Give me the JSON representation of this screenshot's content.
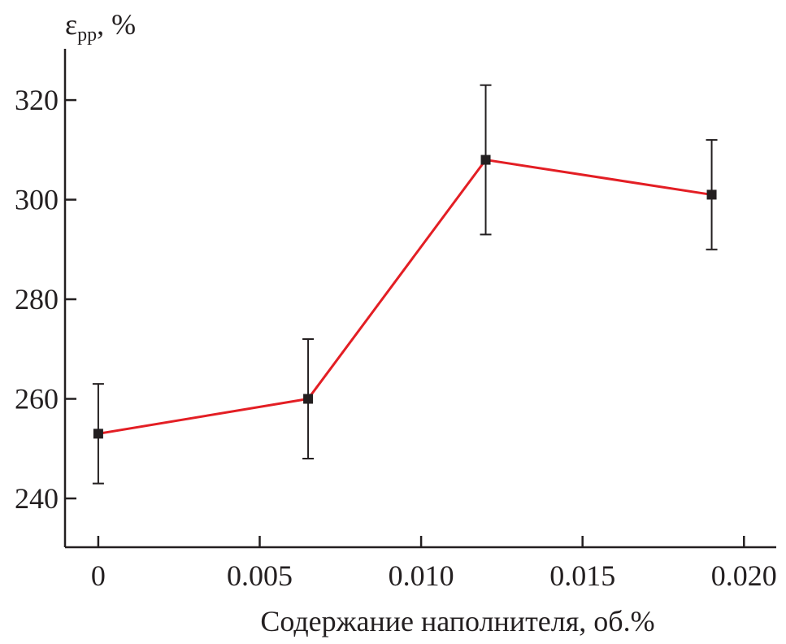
{
  "chart_data": {
    "type": "line",
    "title": "",
    "ylabel_main": "ε",
    "ylabel_sub": "pp",
    "ylabel_unit": ", %",
    "xlabel": "Содержание наполнителя, об.%",
    "xlim": [
      -0.00103,
      0.021
    ],
    "ylim": [
      230.2,
      330.3
    ],
    "xticks": [
      0,
      0.005,
      0.01,
      0.015,
      0.02
    ],
    "xtick_labels": [
      "0",
      "0.005",
      "0.010",
      "0.015",
      "0.020"
    ],
    "yticks": [
      240,
      260,
      280,
      300,
      320
    ],
    "ytick_labels": [
      "240",
      "260",
      "280",
      "300",
      "320"
    ],
    "grid": false,
    "series": [
      {
        "name": "ε_pp",
        "color": "#e31e24",
        "marker_color": "#231f20",
        "x": [
          0,
          0.0065,
          0.012,
          0.019
        ],
        "y": [
          253,
          260,
          308,
          301
        ],
        "err_low": [
          243,
          248,
          293,
          290
        ],
        "err_high": [
          263,
          272,
          323,
          312
        ]
      }
    ]
  }
}
